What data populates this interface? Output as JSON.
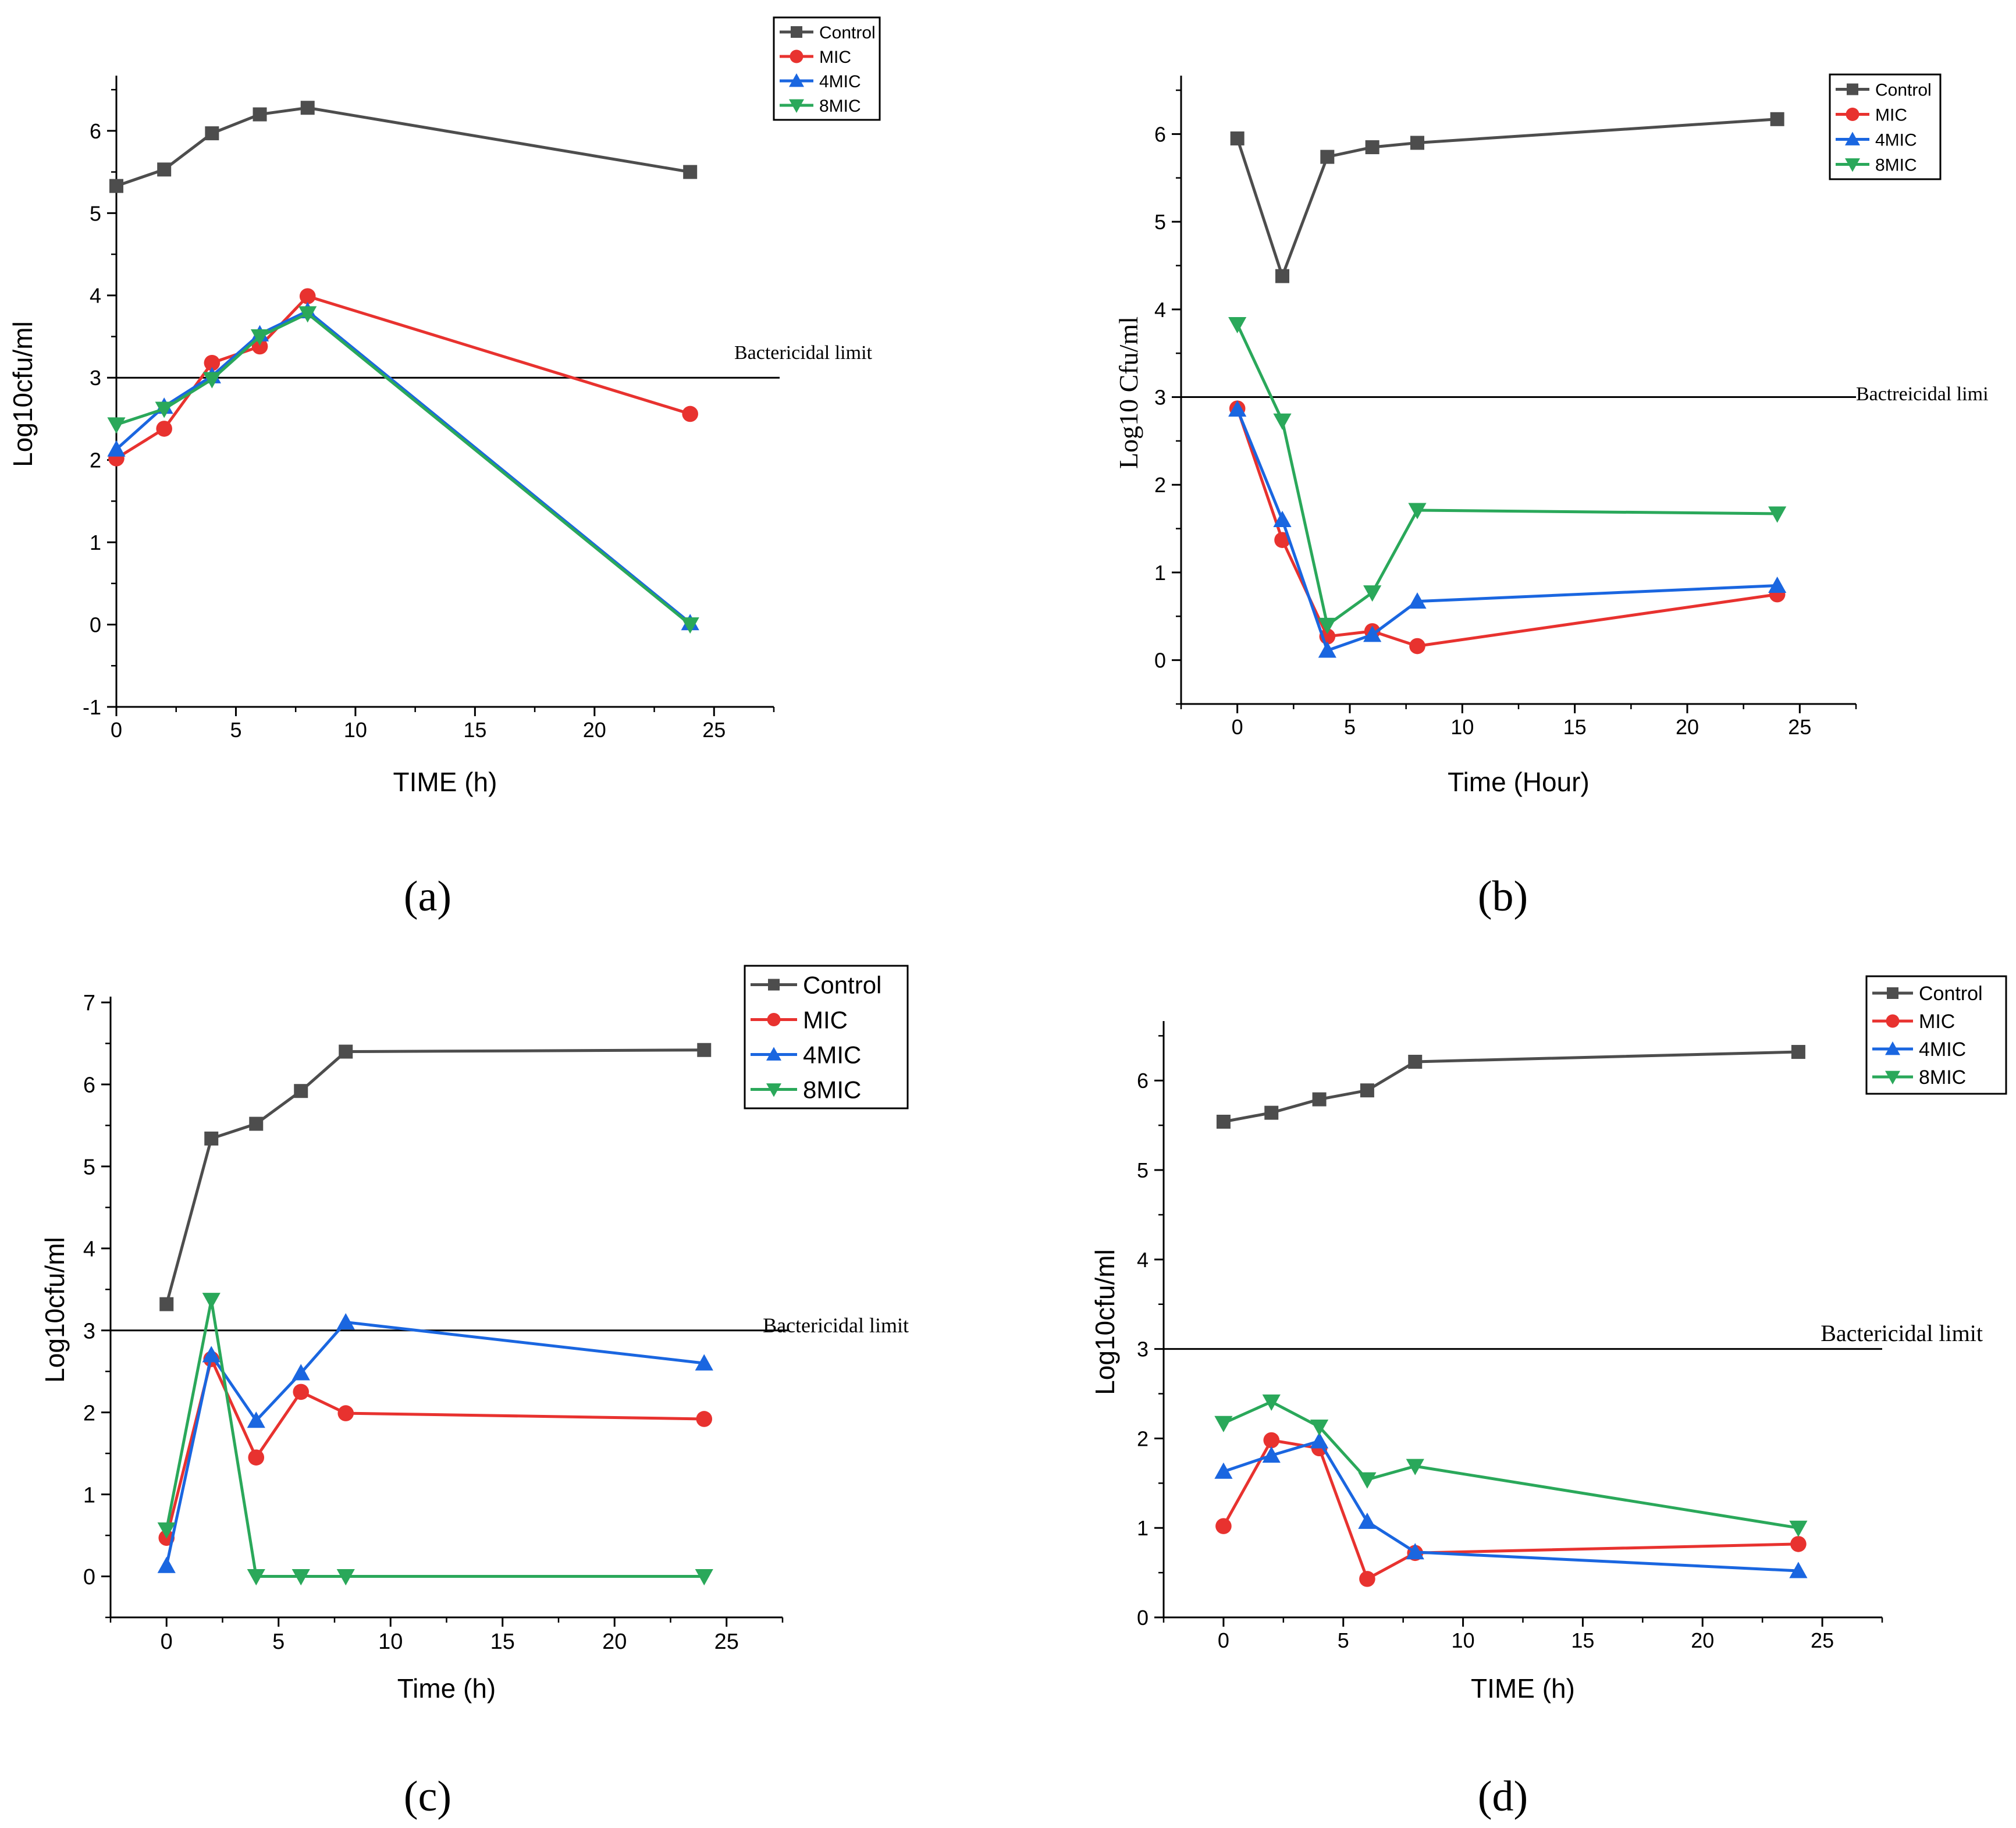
{
  "figure": {
    "colors": {
      "Control": "#4d4d4d",
      "MIC": "#e8322f",
      "4MIC": "#1a66e0",
      "8MIC": "#2aa85a",
      "axis": "#000000",
      "limit_line": "#000000"
    },
    "markers": {
      "Control": "square",
      "MIC": "circle",
      "4MIC": "triangle-up",
      "8MIC": "triangle-down"
    }
  },
  "chart_data": [
    {
      "type": "line",
      "panel_label": "(a)",
      "xlabel": "TIME (h)",
      "ylabel": "Log10cfu/ml",
      "xlim": [
        0,
        27.5
      ],
      "ylim": [
        -1,
        6.6
      ],
      "xticks": [
        0,
        5,
        10,
        15,
        20,
        25
      ],
      "yticks": [
        -1,
        0,
        1,
        2,
        3,
        4,
        5,
        6
      ],
      "limit_value": 3,
      "limit_label": "Bactericidal limit",
      "legend_position": "top-right",
      "series": [
        {
          "name": "Control",
          "x": [
            0,
            2,
            4,
            6,
            8,
            24
          ],
          "values": [
            5.33,
            5.53,
            5.97,
            6.2,
            6.28,
            5.5
          ]
        },
        {
          "name": "MIC",
          "x": [
            0,
            2,
            4,
            6,
            8,
            24
          ],
          "values": [
            2.02,
            2.38,
            3.18,
            3.38,
            3.99,
            2.56
          ]
        },
        {
          "name": "4MIC",
          "x": [
            0,
            2,
            4,
            6,
            8,
            24
          ],
          "values": [
            2.13,
            2.65,
            3.02,
            3.53,
            3.81,
            0.02
          ]
        },
        {
          "name": "8MIC",
          "x": [
            0,
            2,
            4,
            6,
            8,
            24
          ],
          "values": [
            2.43,
            2.62,
            2.98,
            3.5,
            3.78,
            0.0
          ]
        }
      ]
    },
    {
      "type": "line",
      "panel_label": "(b)",
      "xlabel": "Time (Hour)",
      "ylabel": "Log10 Cfu/ml",
      "xlim": [
        -2.5,
        27.5
      ],
      "ylim": [
        -0.5,
        6.6
      ],
      "xticks": [
        0,
        5,
        10,
        15,
        20,
        25
      ],
      "yticks": [
        0,
        1,
        2,
        3,
        4,
        5,
        6
      ],
      "limit_value": 3,
      "limit_label": "Bactreicidal limi",
      "legend_position": "top-right",
      "series": [
        {
          "name": "Control",
          "x": [
            0,
            2,
            4,
            6,
            8,
            24
          ],
          "values": [
            5.95,
            4.38,
            5.74,
            5.85,
            5.9,
            6.17
          ]
        },
        {
          "name": "MIC",
          "x": [
            0,
            2,
            4,
            6,
            8,
            24
          ],
          "values": [
            2.87,
            1.37,
            0.27,
            0.33,
            0.16,
            0.75
          ]
        },
        {
          "name": "4MIC",
          "x": [
            0,
            2,
            4,
            6,
            8,
            24
          ],
          "values": [
            2.86,
            1.6,
            0.11,
            0.29,
            0.67,
            0.85
          ]
        },
        {
          "name": "8MIC",
          "x": [
            0,
            2,
            4,
            6,
            8,
            24
          ],
          "values": [
            3.83,
            2.73,
            0.4,
            0.77,
            1.71,
            1.67
          ]
        }
      ]
    },
    {
      "type": "line",
      "panel_label": "(c)",
      "xlabel": "Time (h)",
      "ylabel": "Log10cfu/ml",
      "xlim": [
        -2.5,
        27.5
      ],
      "ylim": [
        -0.5,
        7
      ],
      "xticks": [
        0,
        5,
        10,
        15,
        20,
        25
      ],
      "yticks": [
        0,
        1,
        2,
        3,
        4,
        5,
        6,
        7
      ],
      "limit_value": 3,
      "limit_label": "Bactericidal limit",
      "legend_position": "top-right",
      "series": [
        {
          "name": "Control",
          "x": [
            0,
            2,
            4,
            6,
            8,
            24
          ],
          "values": [
            3.32,
            5.34,
            5.52,
            5.92,
            6.4,
            6.42
          ]
        },
        {
          "name": "MIC",
          "x": [
            0,
            2,
            4,
            6,
            8,
            24
          ],
          "values": [
            0.47,
            2.65,
            1.45,
            2.25,
            1.99,
            1.92
          ]
        },
        {
          "name": "4MIC",
          "x": [
            0,
            2,
            4,
            6,
            8,
            24
          ],
          "values": [
            0.13,
            2.7,
            1.9,
            2.48,
            3.1,
            2.6
          ]
        },
        {
          "name": "8MIC",
          "x": [
            0,
            2,
            4,
            6,
            8,
            24
          ],
          "values": [
            0.57,
            3.37,
            0.0,
            0.0,
            0.0,
            0.0
          ]
        }
      ]
    },
    {
      "type": "line",
      "panel_label": "(d)",
      "xlabel": "TIME (h)",
      "ylabel": "Log10cfu/ml",
      "xlim": [
        -2.5,
        27.5
      ],
      "ylim": [
        0,
        6.6
      ],
      "xticks": [
        0,
        5,
        10,
        15,
        20,
        25
      ],
      "yticks": [
        0,
        1,
        2,
        3,
        4,
        5,
        6
      ],
      "limit_value": 3,
      "limit_label": "Bactericidal limit",
      "legend_position": "top-right",
      "series": [
        {
          "name": "Control",
          "x": [
            0,
            2,
            4,
            6,
            8,
            24
          ],
          "values": [
            5.54,
            5.64,
            5.79,
            5.89,
            6.21,
            6.32
          ]
        },
        {
          "name": "MIC",
          "x": [
            0,
            2,
            4,
            6,
            8,
            24
          ],
          "values": [
            1.02,
            1.98,
            1.89,
            0.43,
            0.72,
            0.82
          ]
        },
        {
          "name": "4MIC",
          "x": [
            0,
            2,
            4,
            6,
            8,
            24
          ],
          "values": [
            1.63,
            1.81,
            1.97,
            1.07,
            0.73,
            0.52
          ]
        },
        {
          "name": "8MIC",
          "x": [
            0,
            2,
            4,
            6,
            8,
            24
          ],
          "values": [
            2.17,
            2.41,
            2.13,
            1.54,
            1.69,
            1.0
          ]
        }
      ]
    }
  ]
}
